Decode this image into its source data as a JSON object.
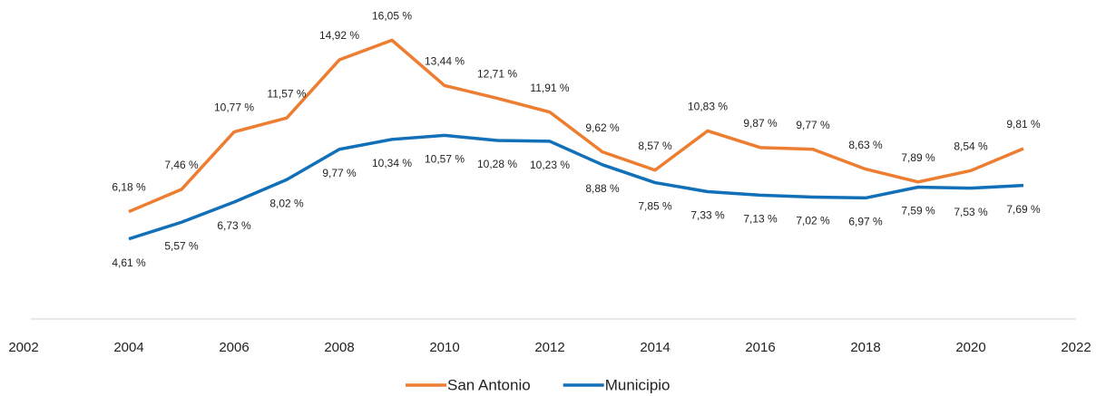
{
  "chart_data": {
    "type": "line",
    "x": [
      2004,
      2005,
      2006,
      2007,
      2008,
      2009,
      2010,
      2011,
      2012,
      2013,
      2014,
      2015,
      2016,
      2017,
      2018,
      2019,
      2020,
      2021
    ],
    "xlim": [
      2002,
      2022
    ],
    "xticks": [
      2002,
      2004,
      2006,
      2008,
      2010,
      2012,
      2014,
      2016,
      2018,
      2020,
      2022
    ],
    "ylim": [
      0,
      18
    ],
    "legend": "bottom",
    "series": [
      {
        "name": "San Antonio",
        "color": "#ED7D31",
        "values": [
          6.18,
          7.46,
          10.77,
          11.57,
          14.92,
          16.05,
          13.44,
          12.71,
          11.91,
          9.62,
          8.57,
          10.83,
          9.87,
          9.77,
          8.63,
          7.89,
          8.54,
          9.81
        ],
        "value_labels": [
          "6,18 %",
          "7,46 %",
          "10,77 %",
          "11,57 %",
          "14,92 %",
          "16,05 %",
          "13,44 %",
          "12,71 %",
          "11,91 %",
          "9,62 %",
          "8,57 %",
          "10,83 %",
          "9,87 %",
          "9,77 %",
          "8,63 %",
          "7,89 %",
          "8,54 %",
          "9,81 %"
        ]
      },
      {
        "name": "Municipio",
        "color": "#1170B8",
        "values": [
          4.61,
          5.57,
          6.73,
          8.02,
          9.77,
          10.34,
          10.57,
          10.28,
          10.23,
          8.88,
          7.85,
          7.33,
          7.13,
          7.02,
          6.97,
          7.59,
          7.53,
          7.69
        ],
        "value_labels": [
          "4,61 %",
          "5,57 %",
          "6,73 %",
          "8,02 %",
          "9,77 %",
          "10,34 %",
          "10,57 %",
          "10,28 %",
          "10,23 %",
          "8,88 %",
          "7,85 %",
          "7,33 %",
          "7,13 %",
          "7,02 %",
          "6,97 %",
          "7,59 %",
          "7,53 %",
          "7,69 %"
        ]
      }
    ]
  }
}
